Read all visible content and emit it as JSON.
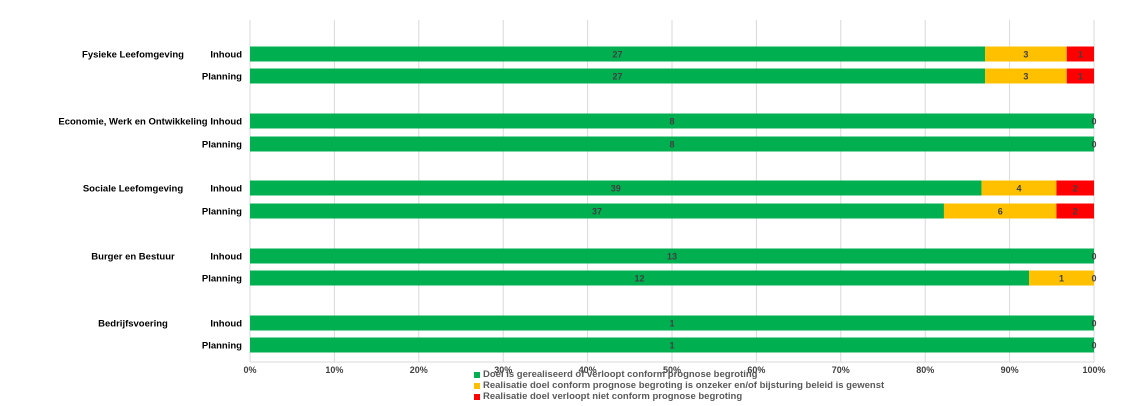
{
  "chart_data": {
    "type": "bar",
    "orientation": "horizontal",
    "stacked": true,
    "normalized": true,
    "title": "",
    "xlabel": "",
    "ylabel": "",
    "xlim": [
      0,
      100
    ],
    "x_ticks": [
      "0%",
      "10%",
      "20%",
      "30%",
      "40%",
      "50%",
      "60%",
      "70%",
      "80%",
      "90%",
      "100%"
    ],
    "grid": "vertical",
    "legend_position": "bottom",
    "groups": [
      {
        "label": "Fysieke Leefomgeving",
        "rows": [
          {
            "label": "Inhoud",
            "values": [
              27,
              3,
              1
            ]
          },
          {
            "label": "Planning",
            "values": [
              27,
              3,
              1
            ]
          }
        ]
      },
      {
        "label": "Economie, Werk en Ontwikkeling",
        "rows": [
          {
            "label": "Inhoud",
            "values": [
              8,
              0,
              0
            ]
          },
          {
            "label": "Planning",
            "values": [
              8,
              0,
              0
            ]
          }
        ]
      },
      {
        "label": "Sociale Leefomgeving",
        "rows": [
          {
            "label": "Inhoud",
            "values": [
              39,
              4,
              2
            ]
          },
          {
            "label": "Planning",
            "values": [
              37,
              6,
              2
            ]
          }
        ]
      },
      {
        "label": "Burger en Bestuur",
        "rows": [
          {
            "label": "Inhoud",
            "values": [
              13,
              0,
              0
            ]
          },
          {
            "label": "Planning",
            "values": [
              12,
              1,
              0
            ]
          }
        ]
      },
      {
        "label": "Bedrijfsvoering",
        "rows": [
          {
            "label": "Inhoud",
            "values": [
              1,
              0,
              0
            ]
          },
          {
            "label": "Planning",
            "values": [
              1,
              0,
              0
            ]
          }
        ]
      }
    ],
    "series": [
      {
        "name": "Doel is gerealiseerd of verloopt conform prognose begroting",
        "color": "#00b050"
      },
      {
        "name": "Realisatie doel conform prognose begroting is onzeker en/of bijsturing beleid is gewenst",
        "color": "#ffc000"
      },
      {
        "name": "Realisatie doel verloopt niet conform prognose begroting",
        "color": "#ff0000"
      }
    ]
  }
}
